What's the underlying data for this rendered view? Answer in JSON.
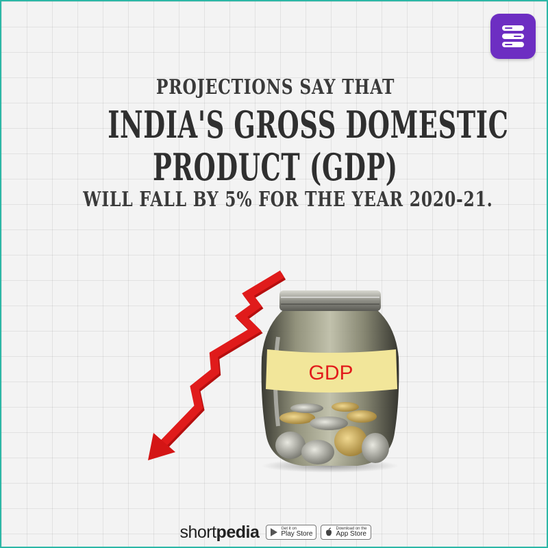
{
  "headline": {
    "line1": "PROJECTIONS SAY THAT",
    "line2": "INDIA'S GROSS DOMESTIC",
    "line3": "PRODUCT (GDP)",
    "line4": "WILL FALL BY 5% FOR THE YEAR 2020-21."
  },
  "jar_label": "GDP",
  "footer": {
    "brand_regular": "short",
    "brand_bold": "pedia",
    "google_play": {
      "small": "Get it on",
      "big": "Play Store"
    },
    "app_store": {
      "small": "Download on the",
      "big": "App Store"
    }
  },
  "colors": {
    "frame": "#2bb7a6",
    "badge": "#6d2ec2",
    "arrow": "#e01b1b",
    "jar_label_bg": "#f2e69a",
    "jar_label_text": "#e21c1c",
    "headline_text": "#2f2f2f"
  },
  "icons": {
    "badge": "shortpedia-logo-icon",
    "arrow": "downtrend-arrow-icon",
    "jar": "coin-jar-icon",
    "play": "google-play-icon",
    "apple": "apple-icon"
  }
}
